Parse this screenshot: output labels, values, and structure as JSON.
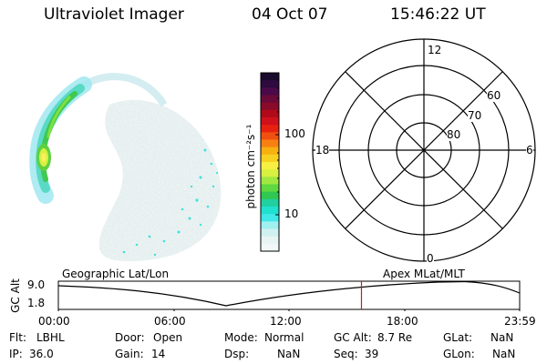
{
  "header": {
    "instrument": "Ultraviolet Imager",
    "date": "04 Oct 07",
    "time": "15:46:22 UT"
  },
  "colorbar": {
    "unit_label": "photon cm⁻²s⁻¹",
    "ticks": [
      "100",
      "10"
    ],
    "colors": [
      "#1a0a2e",
      "#2e0a3e",
      "#4a0a4a",
      "#6a0a3a",
      "#8a0a2a",
      "#b00a1a",
      "#d0101a",
      "#e82010",
      "#f05010",
      "#f88010",
      "#f8b010",
      "#f8d020",
      "#f8f040",
      "#d8f040",
      "#a0e840",
      "#60d840",
      "#30c850",
      "#20d0a0",
      "#20e0d0",
      "#40e8e8",
      "#a0f0f0",
      "#d0f0f0",
      "#e8f4f4",
      "#f2f8f8"
    ]
  },
  "polar_grid": {
    "mlt_labels": {
      "top": "12",
      "left": "18",
      "right": "6",
      "bottom": "0"
    },
    "lat_labels": [
      "60",
      "70",
      "80"
    ]
  },
  "timeline": {
    "left_label": "Geographic Lat/Lon",
    "right_label": "Apex  MLat/MLT",
    "axis_label": "GC Alt",
    "y_ticks": [
      "9.0",
      "1.8"
    ],
    "x_ticks": [
      "00:00",
      "06:00",
      "12:00",
      "18:00",
      "23:59"
    ],
    "marker_time_hours": 15.77,
    "marker_color": "#c02020"
  },
  "info_rows": [
    [
      {
        "label": "Flt:",
        "value": "LBHL"
      },
      {
        "label": "Door:",
        "value": "Open"
      },
      {
        "label": "Mode:",
        "value": "Normal"
      },
      {
        "label": "GC Alt:",
        "value": "8.7 Re"
      },
      {
        "label": "GLat:",
        "value": "NaN"
      }
    ],
    [
      {
        "label": "IP:",
        "value": "36.0"
      },
      {
        "label": "Gain:",
        "value": "14"
      },
      {
        "label": "Dsp:",
        "value": "NaN"
      },
      {
        "label": "Seq:",
        "value": "39"
      },
      {
        "label": "GLon:",
        "value": "NaN"
      }
    ]
  ]
}
